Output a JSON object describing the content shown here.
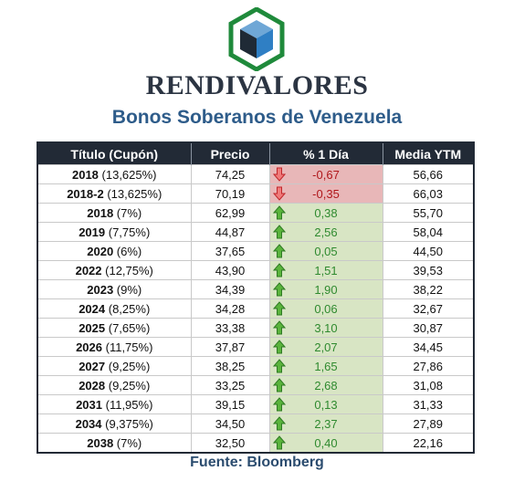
{
  "brand": "RENDIVALORES",
  "subtitle": "Bonos Soberanos de Venezuela",
  "headers": [
    "Título (Cupón)",
    "Precio",
    "% 1 Día",
    "Media YTM"
  ],
  "rows": [
    {
      "year": "2018",
      "coupon": "(13,625%)",
      "price": "74,25",
      "change": "-0,67",
      "dir": "down",
      "ytm": "56,66"
    },
    {
      "year": "2018-2",
      "coupon": "(13,625%)",
      "price": "70,19",
      "change": "-0,35",
      "dir": "down",
      "ytm": "66,03"
    },
    {
      "year": "2018",
      "coupon": "(7%)",
      "price": "62,99",
      "change": "0,38",
      "dir": "up",
      "ytm": "55,70"
    },
    {
      "year": "2019",
      "coupon": "(7,75%)",
      "price": "44,87",
      "change": "2,56",
      "dir": "up",
      "ytm": "58,04"
    },
    {
      "year": "2020",
      "coupon": "(6%)",
      "price": "37,65",
      "change": "0,05",
      "dir": "up",
      "ytm": "44,50"
    },
    {
      "year": "2022",
      "coupon": "(12,75%)",
      "price": "43,90",
      "change": "1,51",
      "dir": "up",
      "ytm": "39,53"
    },
    {
      "year": "2023",
      "coupon": "(9%)",
      "price": "34,39",
      "change": "1,90",
      "dir": "up",
      "ytm": "38,22"
    },
    {
      "year": "2024",
      "coupon": "(8,25%)",
      "price": "34,28",
      "change": "0,06",
      "dir": "up",
      "ytm": "32,67"
    },
    {
      "year": "2025",
      "coupon": "(7,65%)",
      "price": "33,38",
      "change": "3,10",
      "dir": "up",
      "ytm": "30,87"
    },
    {
      "year": "2026",
      "coupon": "(11,75%)",
      "price": "37,87",
      "change": "2,07",
      "dir": "up",
      "ytm": "34,45"
    },
    {
      "year": "2027",
      "coupon": "(9,25%)",
      "price": "38,25",
      "change": "1,65",
      "dir": "up",
      "ytm": "27,86"
    },
    {
      "year": "2028",
      "coupon": "(9,25%)",
      "price": "33,25",
      "change": "2,68",
      "dir": "up",
      "ytm": "31,08"
    },
    {
      "year": "2031",
      "coupon": "(11,95%)",
      "price": "39,15",
      "change": "0,13",
      "dir": "up",
      "ytm": "31,33"
    },
    {
      "year": "2034",
      "coupon": "(9,375%)",
      "price": "34,50",
      "change": "2,37",
      "dir": "up",
      "ytm": "27,89"
    },
    {
      "year": "2038",
      "coupon": "(7%)",
      "price": "32,50",
      "change": "0,40",
      "dir": "up",
      "ytm": "22,16"
    }
  ],
  "source": "Fuente: Bloomberg",
  "colors": {
    "header_bg": "#222a36",
    "down_bg": "#e8b7b8",
    "down_text": "#b0171b",
    "up_bg": "#d8e5c4",
    "up_text": "#2f8a2f",
    "subtitle": "#2e5c8a",
    "logo_green": "#1f8a3b",
    "logo_blue": "#2f7fc4"
  },
  "icons": {
    "down": "red-down-arrow-icon",
    "up": "green-up-arrow-icon",
    "logo": "cube-hexagon-logo-icon"
  }
}
